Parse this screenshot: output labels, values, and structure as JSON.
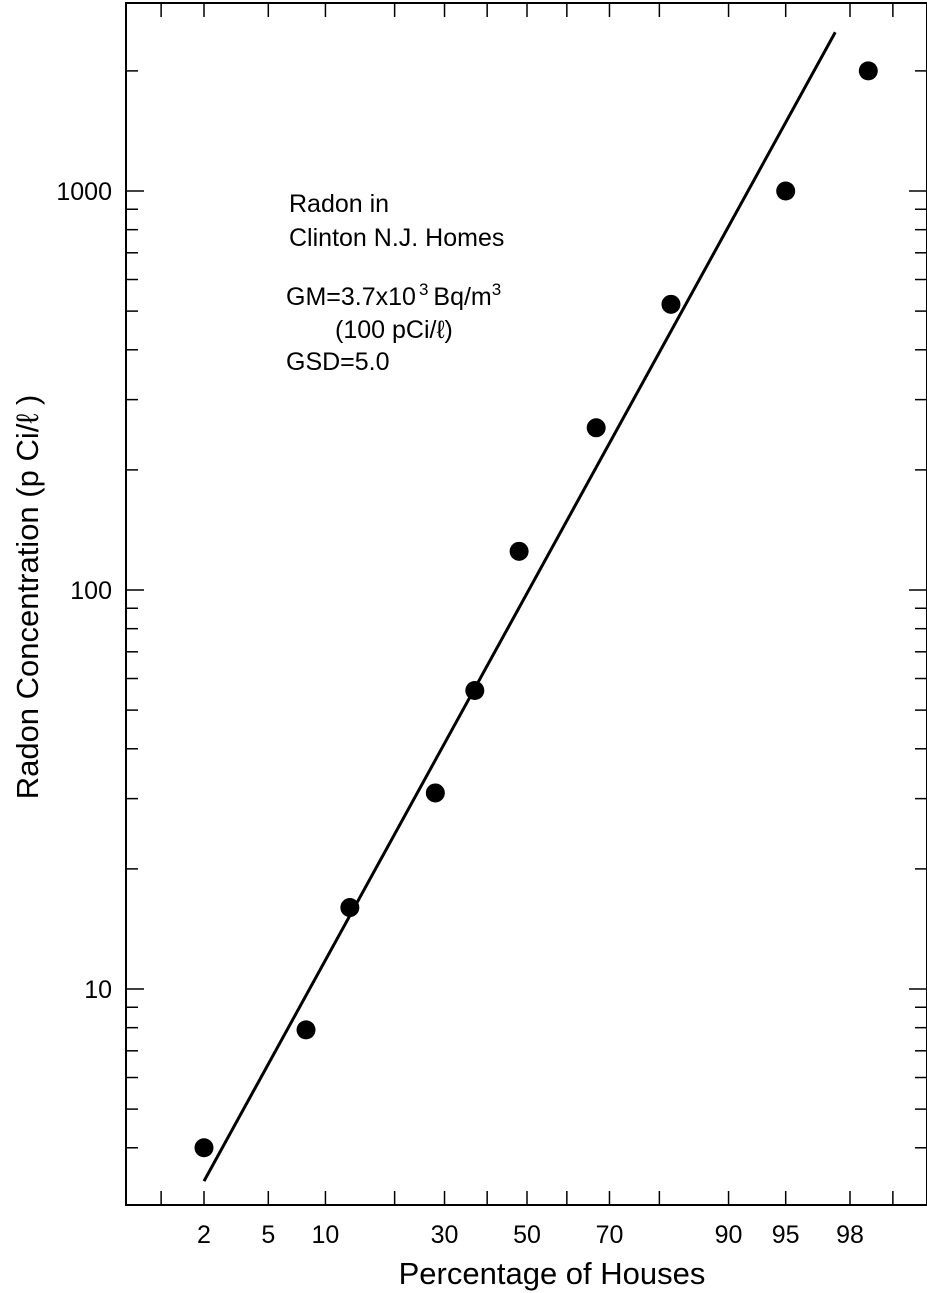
{
  "chart_data": {
    "type": "scatter",
    "xlabel": "Percentage of Houses",
    "ylabel": "Radon Concentration (p Ci/ℓ )",
    "x_scale": "probability",
    "y_scale": "log",
    "ylim": [
      3.1,
      3000
    ],
    "x_ticks": [
      2,
      5,
      10,
      30,
      50,
      70,
      90,
      95,
      98
    ],
    "y_tick_labels": [
      10,
      100,
      1000
    ],
    "annotation": {
      "line1": "Radon in",
      "line2": "Clinton N.J. Homes",
      "gm_prefix": "GM=3.7x10",
      "gm_exp": "3",
      "gm_unit": "Bq/m",
      "gm_unit_exp": "3",
      "gm_alt": "(100 pCi/ℓ)",
      "gsd": "GSD=5.0"
    },
    "points": [
      {
        "x": 2,
        "y": 4
      },
      {
        "x": 8,
        "y": 7.9
      },
      {
        "x": 13,
        "y": 16
      },
      {
        "x": 28,
        "y": 31
      },
      {
        "x": 37,
        "y": 56
      },
      {
        "x": 48,
        "y": 125
      },
      {
        "x": 67,
        "y": 255
      },
      {
        "x": 82,
        "y": 520
      },
      {
        "x": 95,
        "y": 1000
      },
      {
        "x": 98.5,
        "y": 2000
      }
    ],
    "fit_line": {
      "x": [
        2,
        97.5
      ],
      "y": [
        3.3,
        2500
      ]
    }
  }
}
